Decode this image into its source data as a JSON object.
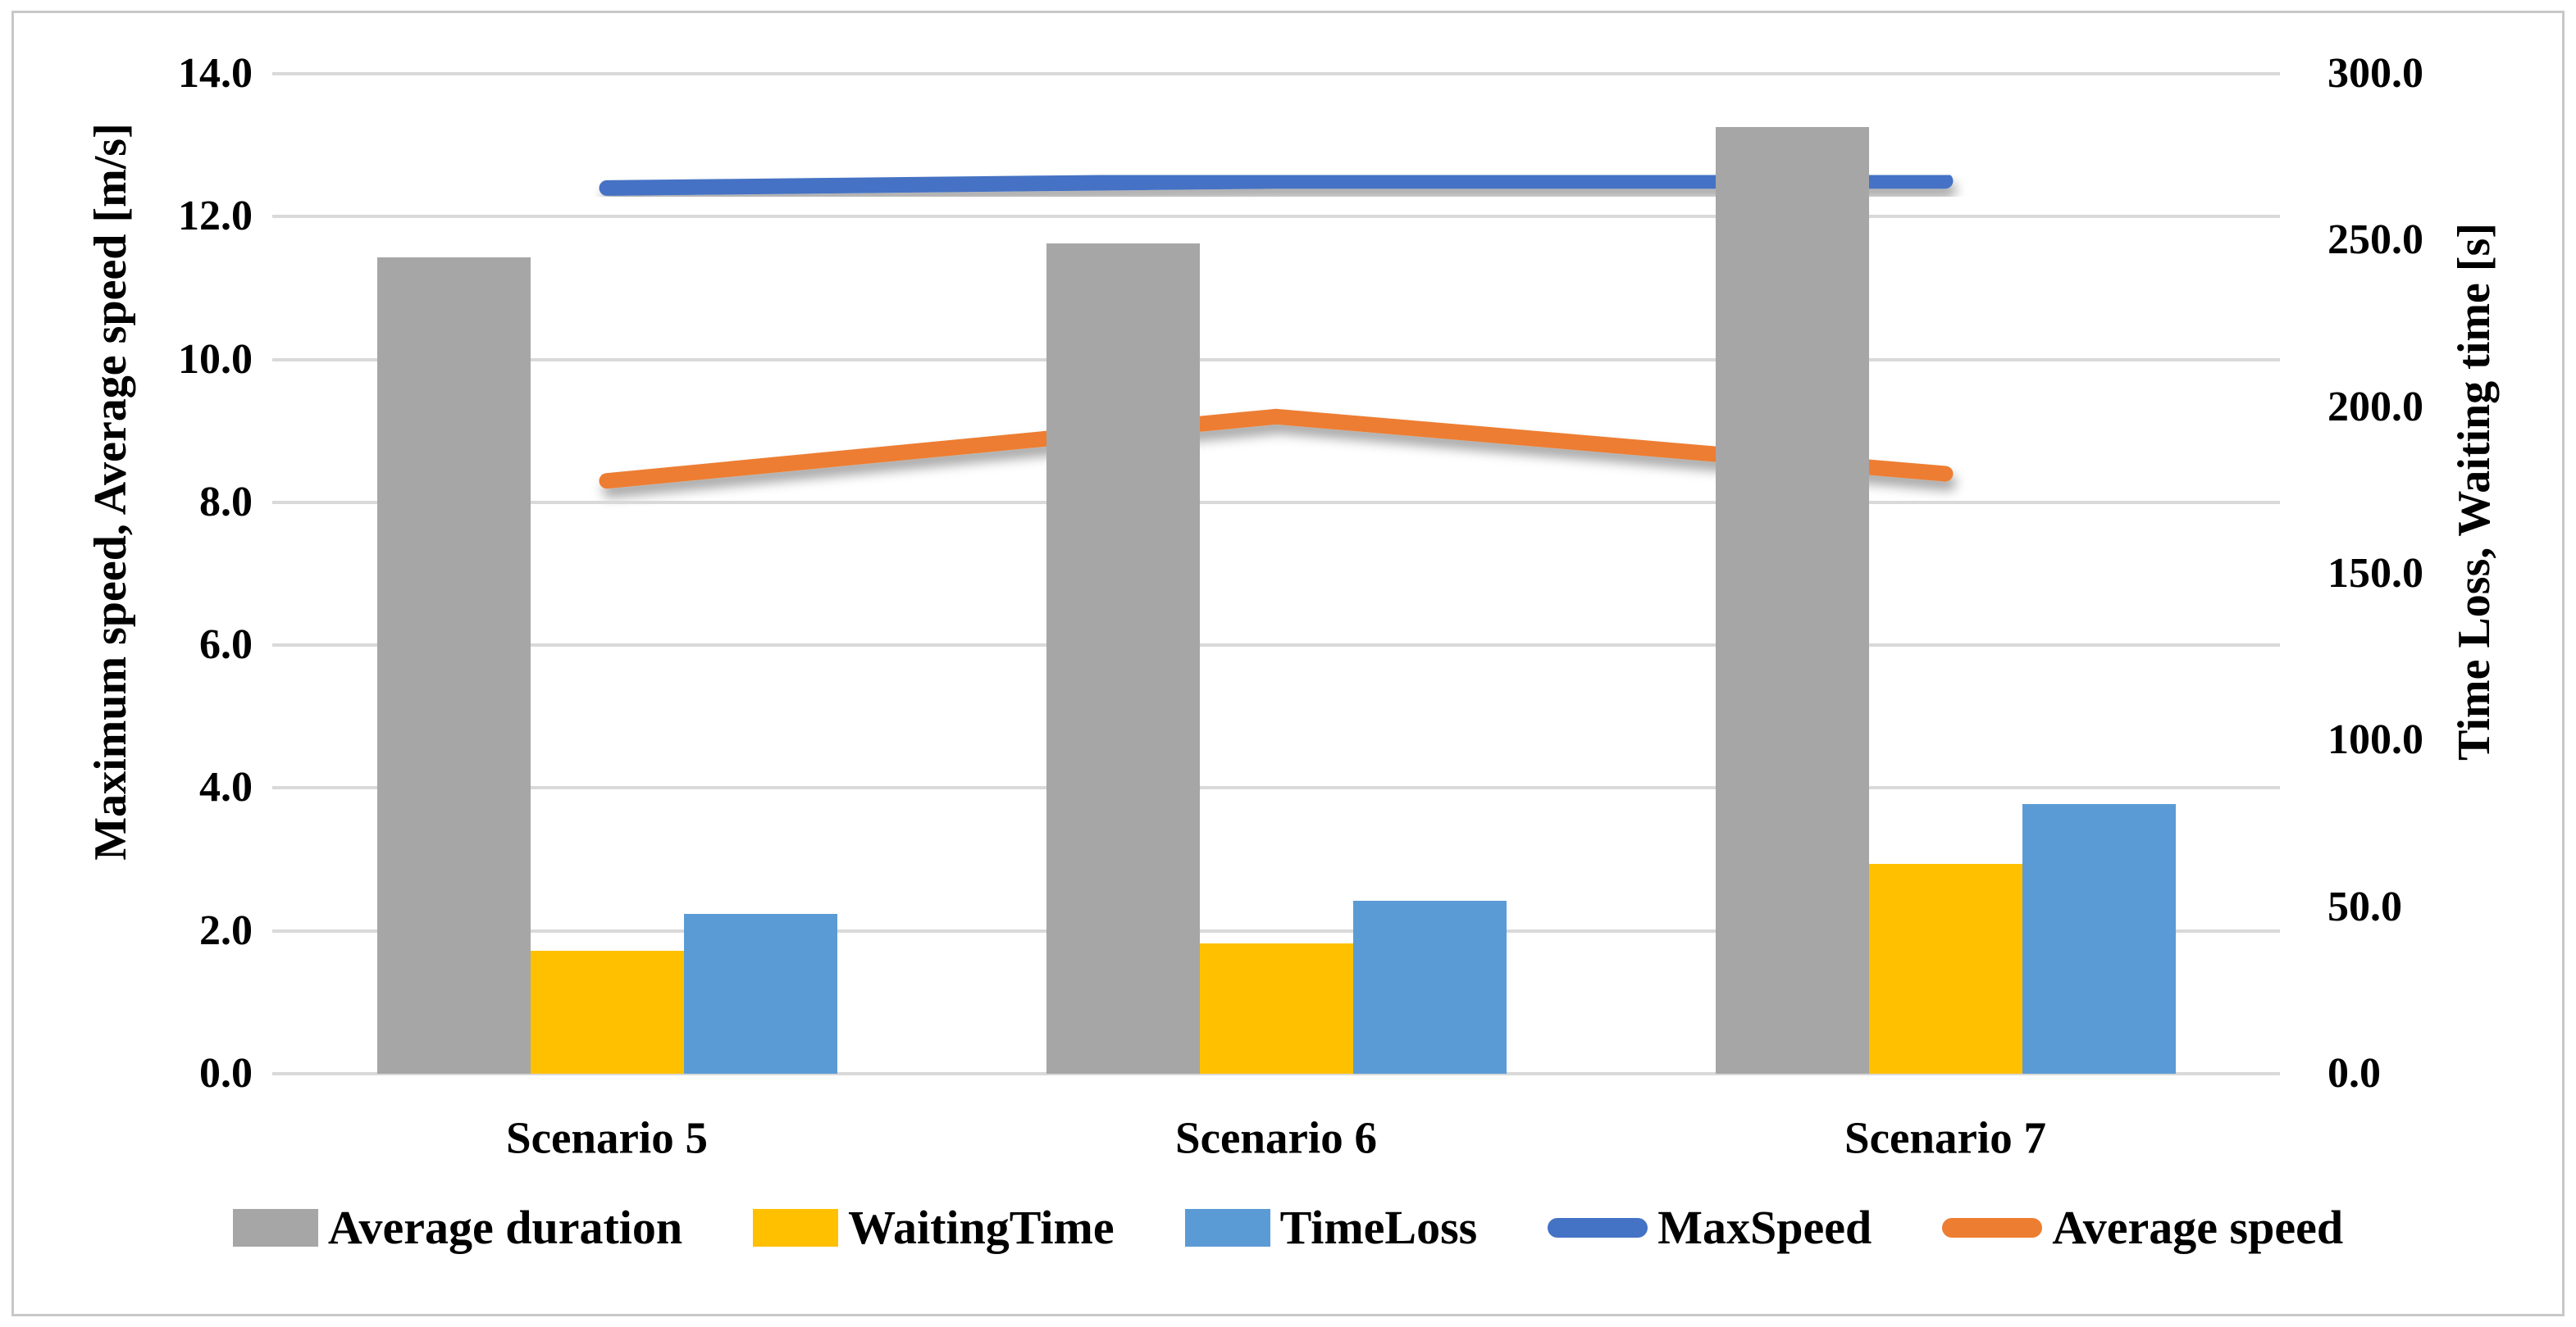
{
  "chart_data": {
    "type": "combo-bar-line",
    "categories": [
      "Scenario 5",
      "Scenario 6",
      "Scenario 7"
    ],
    "bar_series": [
      {
        "name": "Average duration",
        "axis": "right",
        "unit": "s",
        "color": "#A6A6A6",
        "values": [
          245,
          249,
          284
        ]
      },
      {
        "name": "WaitingTime",
        "axis": "right",
        "unit": "s",
        "color": "#FFC000",
        "values": [
          37,
          39,
          63
        ]
      },
      {
        "name": "TimeLoss",
        "axis": "right",
        "unit": "s",
        "color": "#5B9BD5",
        "values": [
          48,
          52,
          81
        ]
      }
    ],
    "line_series": [
      {
        "name": "MaxSpeed",
        "axis": "left",
        "unit": "m/s",
        "color": "#4472C4",
        "values": [
          12.4,
          12.5,
          12.5
        ]
      },
      {
        "name": "Average speed",
        "axis": "left",
        "unit": "m/s",
        "color": "#ED7D31",
        "values": [
          8.3,
          9.2,
          8.4
        ]
      }
    ],
    "left_axis": {
      "title": "Maximum speed, Average speed [m/s]",
      "min": 0,
      "max": 14,
      "step": 2,
      "ticks": [
        "0.0",
        "2.0",
        "4.0",
        "6.0",
        "8.0",
        "10.0",
        "12.0",
        "14.0"
      ]
    },
    "right_axis": {
      "title": "Time Loss, Waiting time [s]",
      "min": 0,
      "max": 300,
      "step": 50,
      "ticks": [
        "0.0",
        "50.0",
        "100.0",
        "150.0",
        "200.0",
        "250.0",
        "300.0"
      ]
    },
    "legend_position": "bottom",
    "grid": true,
    "colors": {
      "gridline": "#D9D9D9",
      "frame_border": "#C8C8C8",
      "text": "#000000",
      "background": "#FFFFFF"
    }
  }
}
